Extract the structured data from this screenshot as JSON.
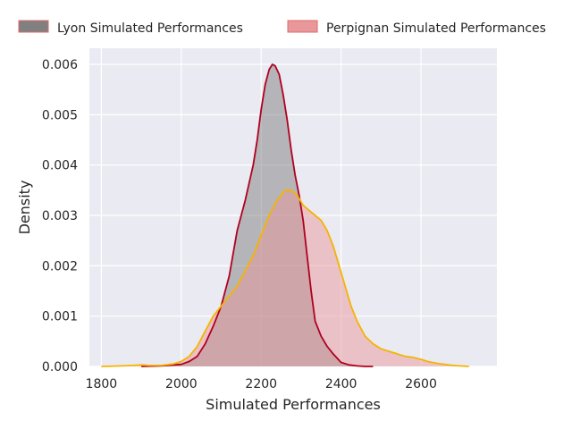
{
  "chart_data": {
    "type": "area",
    "title": "",
    "xlabel": "Simulated Performances",
    "ylabel": "Density",
    "xlim": [
      1770,
      2790
    ],
    "ylim": [
      0,
      0.00632
    ],
    "xticks": [
      1800,
      2000,
      2200,
      2400,
      2600
    ],
    "yticks": [
      0.0,
      0.001,
      0.002,
      0.003,
      0.004,
      0.005,
      0.006
    ],
    "ytick_labels": [
      "0.000",
      "0.001",
      "0.002",
      "0.003",
      "0.004",
      "0.005",
      "0.006"
    ],
    "grid": true,
    "legend_position": "top",
    "series": [
      {
        "name": "Lyon Simulated Performances",
        "fill_color": "#808080",
        "line_color": "#b0001e",
        "x": [
          1900,
          1950,
          2000,
          2020,
          2040,
          2060,
          2080,
          2100,
          2120,
          2140,
          2160,
          2180,
          2190,
          2200,
          2210,
          2220,
          2228,
          2235,
          2245,
          2255,
          2265,
          2275,
          2285,
          2295,
          2305,
          2315,
          2325,
          2335,
          2350,
          2365,
          2380,
          2400,
          2420,
          2440,
          2460,
          2480
        ],
        "y": [
          0.0,
          1e-05,
          4e-05,
          0.0001,
          0.0002,
          0.00045,
          0.0008,
          0.0012,
          0.0018,
          0.0027,
          0.0033,
          0.004,
          0.0045,
          0.0051,
          0.0056,
          0.0059,
          0.006,
          0.00597,
          0.0058,
          0.0054,
          0.0049,
          0.0043,
          0.0038,
          0.0034,
          0.0029,
          0.0022,
          0.0015,
          0.0009,
          0.0006,
          0.0004,
          0.00025,
          8e-05,
          3e-05,
          1e-05,
          0.0,
          0.0
        ]
      },
      {
        "name": "Perpignan Simulated Performances",
        "fill_color": "#e8979b",
        "line_color": "#f5b400",
        "x": [
          1800,
          1850,
          1880,
          1900,
          1920,
          1950,
          1980,
          2000,
          2020,
          2040,
          2060,
          2080,
          2100,
          2120,
          2140,
          2160,
          2180,
          2200,
          2220,
          2240,
          2260,
          2275,
          2290,
          2305,
          2320,
          2335,
          2350,
          2365,
          2380,
          2395,
          2410,
          2425,
          2440,
          2460,
          2480,
          2500,
          2520,
          2540,
          2560,
          2580,
          2600,
          2620,
          2650,
          2680,
          2720
        ],
        "y": [
          0.0,
          1e-05,
          2e-05,
          3e-05,
          2e-05,
          2e-05,
          5e-05,
          0.0001,
          0.0002,
          0.0004,
          0.0007,
          0.001,
          0.0012,
          0.0014,
          0.0016,
          0.0019,
          0.0022,
          0.0026,
          0.003,
          0.0033,
          0.0035,
          0.0035,
          0.0034,
          0.0032,
          0.0031,
          0.003,
          0.0029,
          0.0027,
          0.0024,
          0.002,
          0.0016,
          0.0012,
          0.0009,
          0.0006,
          0.00045,
          0.00035,
          0.0003,
          0.00025,
          0.0002,
          0.00018,
          0.00014,
          9e-05,
          5e-05,
          2e-05,
          0.0
        ]
      }
    ]
  }
}
